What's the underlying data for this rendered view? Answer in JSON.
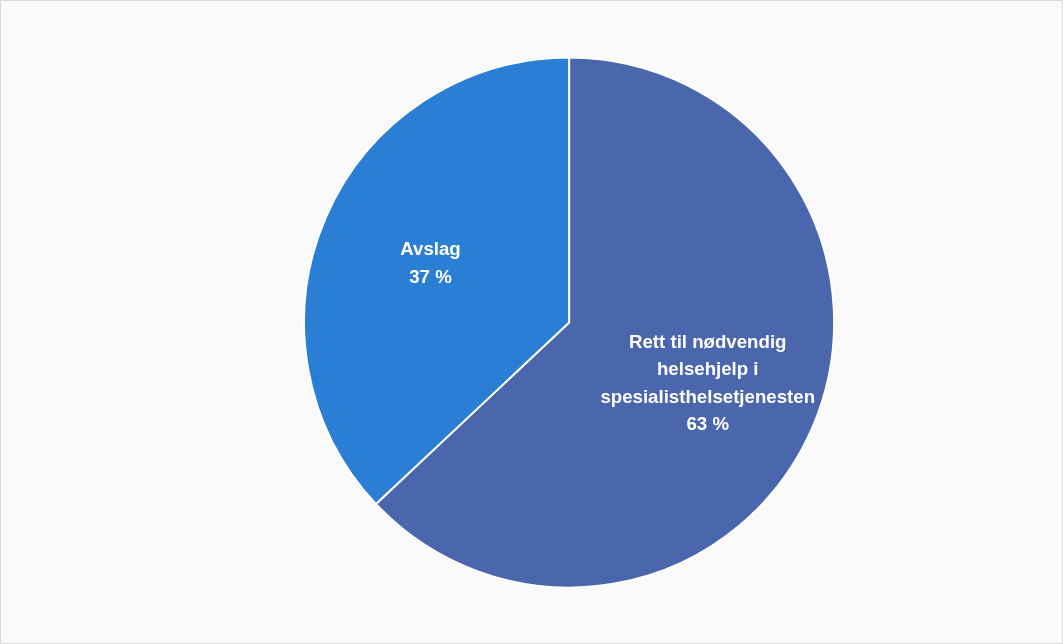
{
  "chart_data": {
    "type": "pie",
    "categories": [
      "Rett til nødvendig helsehjelp i spesialisthelsetjenesten",
      "Avslag"
    ],
    "values": [
      63,
      37
    ],
    "colors": [
      "#4a66ac",
      "#2a7fd4"
    ],
    "value_labels": [
      "63 %",
      "37 %"
    ]
  }
}
